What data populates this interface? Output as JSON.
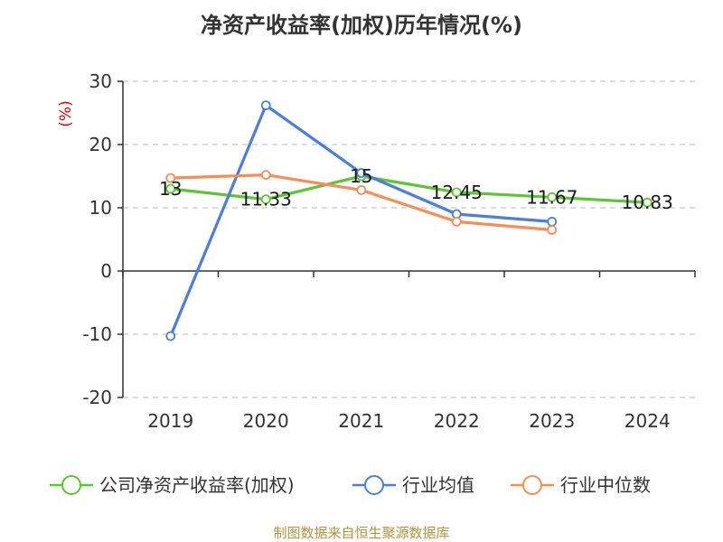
{
  "title": "净资产收益率(加权)历年情况(%)",
  "footer": "制图数据来自恒生聚源数据库",
  "chart_data": {
    "type": "line",
    "title": "净资产收益率(加权)历年情况(%)",
    "ylabel": "(%)",
    "xlabel": "",
    "categories": [
      "2019",
      "2020",
      "2021",
      "2022",
      "2023",
      "2024"
    ],
    "ylim": [
      -20,
      30
    ],
    "yticks": [
      -20,
      -10,
      0,
      10,
      20,
      30
    ],
    "grid": true,
    "legend": "bottom",
    "series": [
      {
        "name": "公司净资产收益率(加权)",
        "color": "#5cc734",
        "values": [
          13,
          11.33,
          15,
          12.45,
          11.67,
          10.83
        ],
        "labels": [
          "13",
          "11.33",
          "15",
          "12.45",
          "11.67",
          "10.83"
        ]
      },
      {
        "name": "行业均值",
        "color": "#4c7fd9",
        "values": [
          -10.3,
          26.2,
          15.5,
          9.0,
          7.8,
          null
        ]
      },
      {
        "name": "行业中位数",
        "color": "#fa8c54",
        "values": [
          14.7,
          15.2,
          12.8,
          7.8,
          6.5,
          null
        ]
      }
    ]
  }
}
